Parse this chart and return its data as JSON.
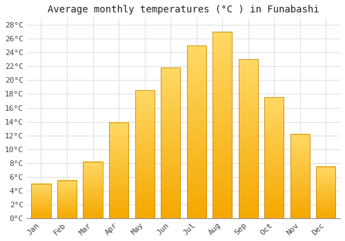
{
  "title": "Average monthly temperatures (°C ) in Funabashi",
  "months": [
    "Jan",
    "Feb",
    "Mar",
    "Apr",
    "May",
    "Jun",
    "Jul",
    "Aug",
    "Sep",
    "Oct",
    "Nov",
    "Dec"
  ],
  "temperatures": [
    5.0,
    5.5,
    8.2,
    13.9,
    18.5,
    21.8,
    25.0,
    27.0,
    23.0,
    17.5,
    12.2,
    7.5
  ],
  "bar_color_bottom": "#F5A800",
  "bar_color_top": "#FFD966",
  "bar_edge_color": "#CC8800",
  "ylim": [
    0,
    29
  ],
  "yticks": [
    0,
    2,
    4,
    6,
    8,
    10,
    12,
    14,
    16,
    18,
    20,
    22,
    24,
    26,
    28
  ],
  "ytick_labels": [
    "0°C",
    "2°C",
    "4°C",
    "6°C",
    "8°C",
    "10°C",
    "12°C",
    "14°C",
    "16°C",
    "18°C",
    "20°C",
    "22°C",
    "24°C",
    "26°C",
    "28°C"
  ],
  "background_color": "#ffffff",
  "plot_bg_color": "#ffffff",
  "grid_color": "#dddddd",
  "title_fontsize": 10,
  "tick_fontsize": 8,
  "font_family": "monospace"
}
